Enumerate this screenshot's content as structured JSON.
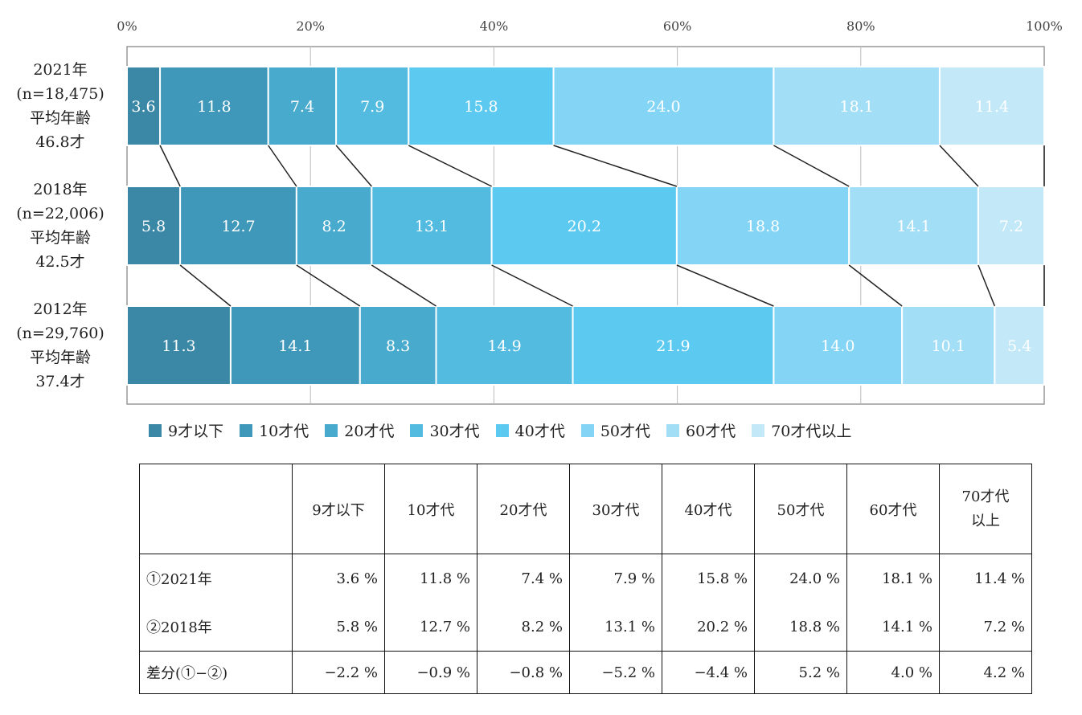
{
  "chart_data": {
    "type": "bar",
    "orientation": "horizontal",
    "stacked": "100%",
    "x_tick_labels": [
      "0%",
      "20%",
      "40%",
      "60%",
      "80%",
      "100%"
    ],
    "xlim": [
      0,
      100
    ],
    "rows": [
      {
        "label_lines": [
          "2021年",
          "(n=18,475)",
          "平均年齢",
          "46.8才"
        ],
        "values": [
          3.6,
          11.8,
          7.4,
          7.9,
          15.8,
          24.0,
          18.1,
          11.4
        ]
      },
      {
        "label_lines": [
          "2018年",
          "(n=22,006)",
          "平均年齢",
          "42.5才"
        ],
        "values": [
          5.8,
          12.7,
          8.2,
          13.1,
          20.2,
          18.8,
          14.1,
          7.2
        ]
      },
      {
        "label_lines": [
          "2012年",
          "(n=29,760)",
          "平均年齢",
          "37.4才"
        ],
        "values": [
          11.3,
          14.1,
          8.3,
          14.9,
          21.9,
          14.0,
          10.1,
          5.4
        ]
      }
    ],
    "series": [
      {
        "name": "9才以下",
        "color": "#3a87a6"
      },
      {
        "name": "10才代",
        "color": "#3f98b9"
      },
      {
        "name": "20才代",
        "color": "#48aacd"
      },
      {
        "name": "30才代",
        "color": "#53bbe0"
      },
      {
        "name": "40才代",
        "color": "#5ccaf0"
      },
      {
        "name": "50才代",
        "color": "#84d5f5"
      },
      {
        "name": "60才代",
        "color": "#a3def7"
      },
      {
        "name": "70才代以上",
        "color": "#c3e9f9"
      }
    ],
    "legend_position": "bottom",
    "grid": "vertical"
  },
  "table": {
    "headers": [
      "",
      "9才以下",
      "10才代",
      "20才代",
      "30才代",
      "40才代",
      "50才代",
      "60才代",
      "70才代\n以上"
    ],
    "rows": [
      {
        "label": "①2021年",
        "cells": [
          "3.6 %",
          "11.8 %",
          "7.4 %",
          "7.9 %",
          "15.8 %",
          "24.0 %",
          "18.1 %",
          "11.4 %"
        ]
      },
      {
        "label": "②2018年",
        "cells": [
          "5.8 %",
          "12.7 %",
          "8.2 %",
          "13.1 %",
          "20.2 %",
          "18.8 %",
          "14.1 %",
          "7.2 %"
        ]
      },
      {
        "label": "差分(①−②)",
        "cells": [
          "−2.2 %",
          "−0.9 %",
          "−0.8 %",
          "−5.2 %",
          "−4.4 %",
          "5.2 %",
          "4.0 %",
          "4.2 %"
        ]
      }
    ]
  }
}
